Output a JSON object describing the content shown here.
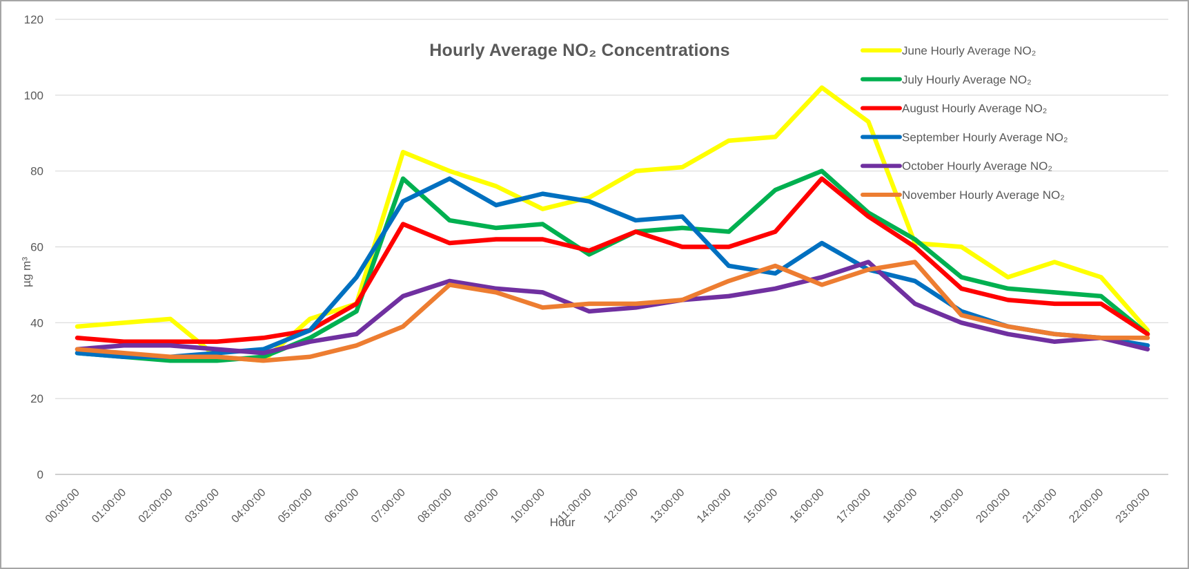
{
  "chart_data": {
    "type": "line",
    "title": "Hourly Average NO₂ Concentrations",
    "xlabel": "Hour",
    "ylabel": "µg m³",
    "ylim": [
      0,
      120
    ],
    "ytick_step": 20,
    "ytick_labels": [
      "0",
      "20",
      "40",
      "60",
      "80",
      "100",
      "120"
    ],
    "grid": true,
    "legend_position": "top-right-overlay",
    "categories": [
      "00:00:00",
      "01:00:00",
      "02:00:00",
      "03:00:00",
      "04:00:00",
      "05:00:00",
      "06:00:00",
      "07:00:00",
      "08:00:00",
      "09:00:00",
      "10:00:00",
      "11:00:00",
      "12:00:00",
      "13:00:00",
      "14:00:00",
      "15:00:00",
      "16:00:00",
      "17:00:00",
      "18:00:00",
      "19:00:00",
      "20:00:00",
      "21:00:00",
      "22:00:00",
      "23:00:00"
    ],
    "series": [
      {
        "name": "June Hourly Average NO₂",
        "color": "#FFFF00",
        "values": [
          39,
          40,
          41,
          31,
          30,
          41,
          45,
          85,
          80,
          76,
          70,
          73,
          80,
          81,
          88,
          89,
          102,
          93,
          61,
          60,
          52,
          56,
          52,
          38
        ]
      },
      {
        "name": "July Hourly Average NO₂",
        "color": "#00B050",
        "values": [
          32,
          31,
          30,
          30,
          31,
          36,
          43,
          78,
          67,
          65,
          66,
          58,
          64,
          65,
          64,
          75,
          80,
          69,
          62,
          52,
          49,
          48,
          47,
          37
        ]
      },
      {
        "name": "August Hourly Average NO₂",
        "color": "#FF0000",
        "values": [
          36,
          35,
          35,
          35,
          36,
          38,
          45,
          66,
          61,
          62,
          62,
          59,
          64,
          60,
          60,
          64,
          78,
          68,
          60,
          49,
          46,
          45,
          45,
          37
        ]
      },
      {
        "name": "September Hourly Average NO₂",
        "color": "#0070C0",
        "values": [
          32,
          31,
          31,
          32,
          33,
          38,
          52,
          72,
          78,
          71,
          74,
          72,
          67,
          68,
          55,
          53,
          61,
          54,
          51,
          43,
          39,
          37,
          36,
          34
        ]
      },
      {
        "name": "October Hourly Average NO₂",
        "color": "#7030A0",
        "values": [
          33,
          34,
          34,
          33,
          32,
          35,
          37,
          47,
          51,
          49,
          48,
          43,
          44,
          46,
          47,
          49,
          52,
          56,
          45,
          40,
          37,
          35,
          36,
          33
        ]
      },
      {
        "name": "November Hourly Average NO₂",
        "color": "#ED7D31",
        "values": [
          33,
          32,
          31,
          31,
          30,
          31,
          34,
          39,
          50,
          48,
          44,
          45,
          45,
          46,
          51,
          55,
          50,
          54,
          56,
          42,
          39,
          37,
          36,
          36
        ]
      }
    ],
    "colors": {
      "text": "#595959",
      "gridline": "#D9D9D9",
      "axis_line": "#BFBFBF",
      "frame_border": "#A6A6A6",
      "background": "#FFFFFF"
    }
  }
}
